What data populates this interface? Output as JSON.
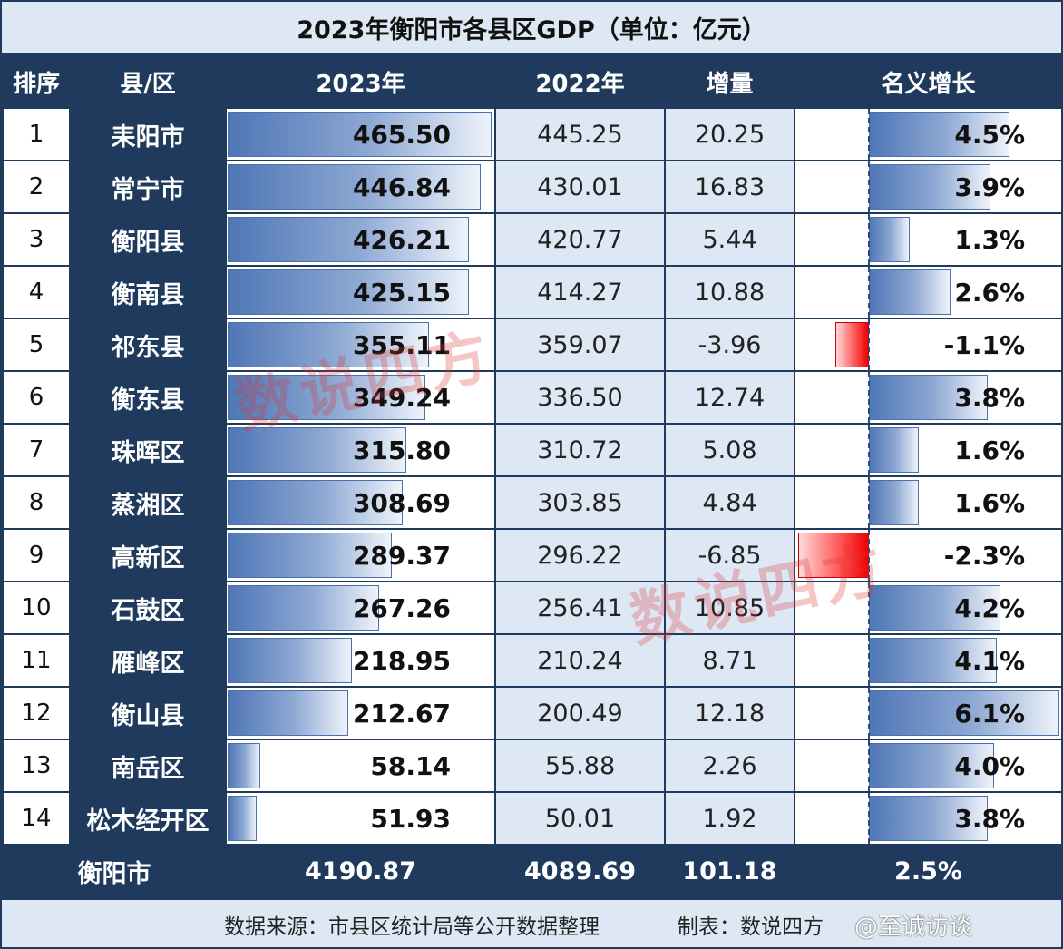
{
  "title": "2023年衡阳市各县区GDP（单位：亿元）",
  "headers": {
    "rank": "排序",
    "name": "县/区",
    "y2023": "2023年",
    "y2022": "2022年",
    "increase": "增量",
    "growth": "名义增长"
  },
  "rows": [
    {
      "rank": "1",
      "name": "耒阳市",
      "y2023": "465.50",
      "y2022": "445.25",
      "increase": "20.25",
      "growth": "4.5%"
    },
    {
      "rank": "2",
      "name": "常宁市",
      "y2023": "446.84",
      "y2022": "430.01",
      "increase": "16.83",
      "growth": "3.9%"
    },
    {
      "rank": "3",
      "name": "衡阳县",
      "y2023": "426.21",
      "y2022": "420.77",
      "increase": "5.44",
      "growth": "1.3%"
    },
    {
      "rank": "4",
      "name": "衡南县",
      "y2023": "425.15",
      "y2022": "414.27",
      "increase": "10.88",
      "growth": "2.6%"
    },
    {
      "rank": "5",
      "name": "祁东县",
      "y2023": "355.11",
      "y2022": "359.07",
      "increase": "-3.96",
      "growth": "-1.1%"
    },
    {
      "rank": "6",
      "name": "衡东县",
      "y2023": "349.24",
      "y2022": "336.50",
      "increase": "12.74",
      "growth": "3.8%"
    },
    {
      "rank": "7",
      "name": "珠晖区",
      "y2023": "315.80",
      "y2022": "310.72",
      "increase": "5.08",
      "growth": "1.6%"
    },
    {
      "rank": "8",
      "name": "蒸湘区",
      "y2023": "308.69",
      "y2022": "303.85",
      "increase": "4.84",
      "growth": "1.6%"
    },
    {
      "rank": "9",
      "name": "高新区",
      "y2023": "289.37",
      "y2022": "296.22",
      "increase": "-6.85",
      "growth": "-2.3%"
    },
    {
      "rank": "10",
      "name": "石鼓区",
      "y2023": "267.26",
      "y2022": "256.41",
      "increase": "10.85",
      "growth": "4.2%"
    },
    {
      "rank": "11",
      "name": "雁峰区",
      "y2023": "218.95",
      "y2022": "210.24",
      "increase": "8.71",
      "growth": "4.1%"
    },
    {
      "rank": "12",
      "name": "衡山县",
      "y2023": "212.67",
      "y2022": "200.49",
      "increase": "12.18",
      "growth": "6.1%"
    },
    {
      "rank": "13",
      "name": "南岳区",
      "y2023": "58.14",
      "y2022": "55.88",
      "increase": "2.26",
      "growth": "4.0%"
    },
    {
      "rank": "14",
      "name": "松木经开区",
      "y2023": "51.93",
      "y2022": "50.01",
      "increase": "1.92",
      "growth": "3.8%"
    }
  ],
  "total": {
    "name": "衡阳市",
    "y2023": "4190.87",
    "y2022": "4089.69",
    "increase": "101.18",
    "growth": "2.5%"
  },
  "footer": {
    "source": "数据来源：市县区统计局等公开数据整理",
    "maker": "制表：数说四方",
    "corner_mark": "@至诚访谈"
  },
  "watermark": "数说四方",
  "colors": {
    "header_bg": "#1f3a5c",
    "light_bg": "#dde8f4",
    "positive_bar": "#4f76b6",
    "negative_bar": "#e00000"
  }
}
